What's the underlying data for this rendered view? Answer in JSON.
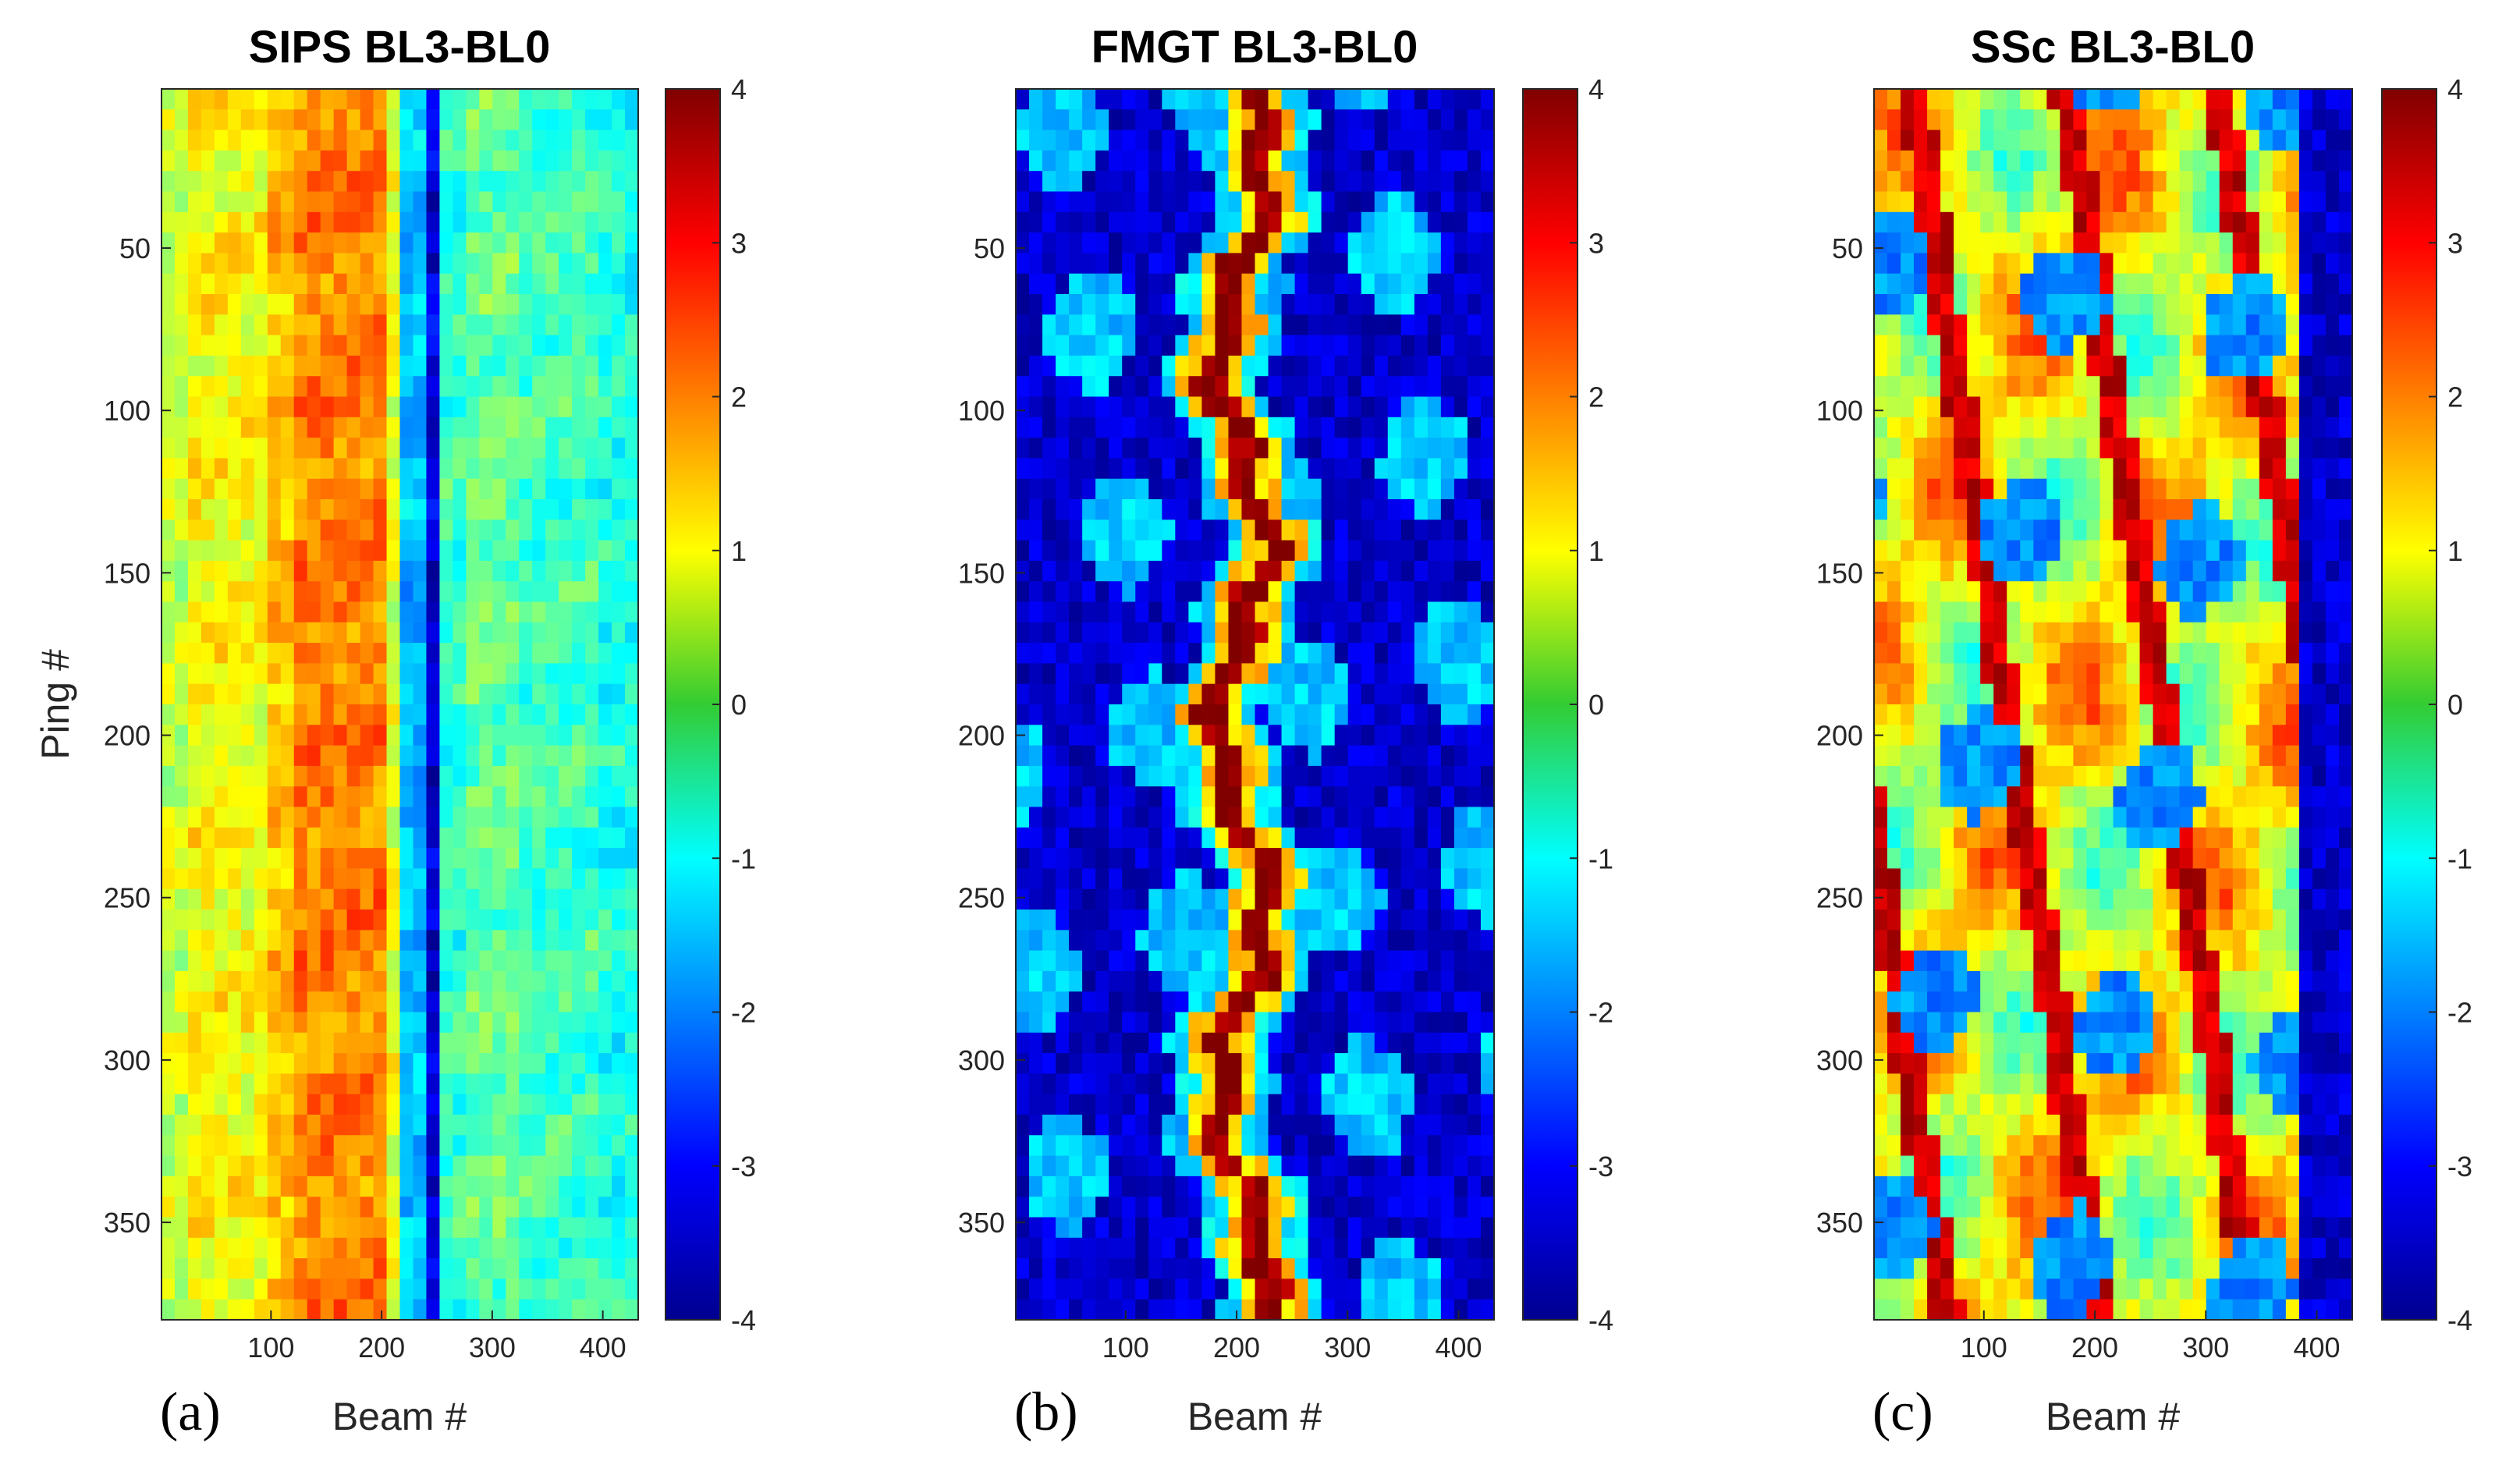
{
  "chart_data": [
    {
      "type": "heatmap",
      "panel": "(a)",
      "title": "SIPS BL3-BL0",
      "xlabel": "Beam #",
      "ylabel": "Ping #",
      "xlim": [
        1,
        432
      ],
      "ylim": [
        1,
        380
      ],
      "y_reversed": true,
      "xticks": [
        100,
        200,
        300,
        400
      ],
      "yticks": [
        50,
        100,
        150,
        200,
        250,
        300,
        350
      ],
      "colorbar": {
        "range": [
          -4,
          4
        ],
        "ticks": [
          4,
          3,
          2,
          1,
          0,
          -1,
          -2,
          -3,
          -4
        ],
        "colormap": "jet"
      },
      "pattern": "vertical bands: ~1 at beams 1-100, ~2 at beams 120-200, ~-3.5 near beam 235, ~-0.8 at beams 250-430"
    },
    {
      "type": "heatmap",
      "panel": "(b)",
      "title": "FMGT BL3-BL0",
      "xlabel": "Beam #",
      "ylabel": "",
      "xlim": [
        1,
        432
      ],
      "ylim": [
        1,
        380
      ],
      "y_reversed": true,
      "xticks": [
        100,
        200,
        300,
        400
      ],
      "yticks": [
        50,
        100,
        150,
        200,
        250,
        300,
        350
      ],
      "colorbar": {
        "range": [
          -4,
          4
        ],
        "ticks": [
          4,
          3,
          2,
          1,
          0,
          -1,
          -2,
          -3,
          -4
        ],
        "colormap": "jet"
      },
      "pattern": "mostly ~-3.5 background with a meandering ~4 ridge near beam 200 and patches ~-1.5"
    },
    {
      "type": "heatmap",
      "panel": "(c)",
      "title": "SSc BL3-BL0",
      "xlabel": "Beam #",
      "ylabel": "",
      "xlim": [
        1,
        432
      ],
      "ylim": [
        1,
        380
      ],
      "y_reversed": true,
      "xticks": [
        100,
        200,
        300,
        400
      ],
      "yticks": [
        50,
        100,
        150,
        200,
        250,
        300,
        350
      ],
      "colorbar": {
        "range": [
          -4,
          4
        ],
        "ticks": [
          4,
          3,
          2,
          1,
          0,
          -1,
          -2,
          -3,
          -4
        ],
        "colormap": "jet"
      },
      "pattern": "mixed ~0 to ~2 field with diagonal ~3.5 streaks and ~-2 patches, ~-3.5 beyond beam 380"
    }
  ]
}
